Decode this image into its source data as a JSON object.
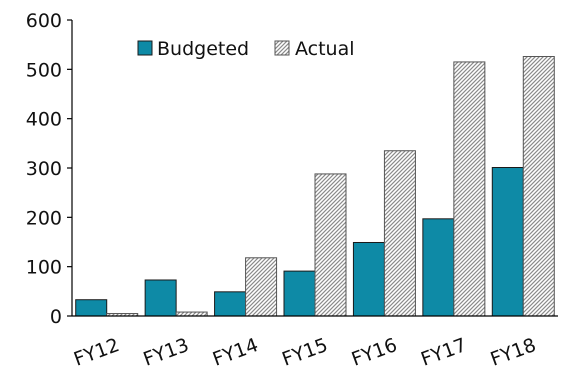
{
  "chart_data": {
    "type": "bar",
    "categories": [
      "FY12",
      "FY13",
      "FY14",
      "FY15",
      "FY16",
      "FY17",
      "FY18"
    ],
    "series": [
      {
        "name": "Budgeted",
        "values": [
          33,
          73,
          49,
          91,
          149,
          197,
          301
        ],
        "color": "#0e8aa6",
        "pattern": "solid"
      },
      {
        "name": "Actual",
        "values": [
          5,
          8,
          118,
          288,
          335,
          515,
          526
        ],
        "color": "#ffffff",
        "pattern": "diagonal-hatch"
      }
    ],
    "ylim": [
      0,
      600
    ],
    "yticks": [
      0,
      100,
      200,
      300,
      400,
      500,
      600
    ],
    "xlabel": "",
    "ylabel": "",
    "title": "",
    "grid": false,
    "legend_position": "top-left"
  }
}
